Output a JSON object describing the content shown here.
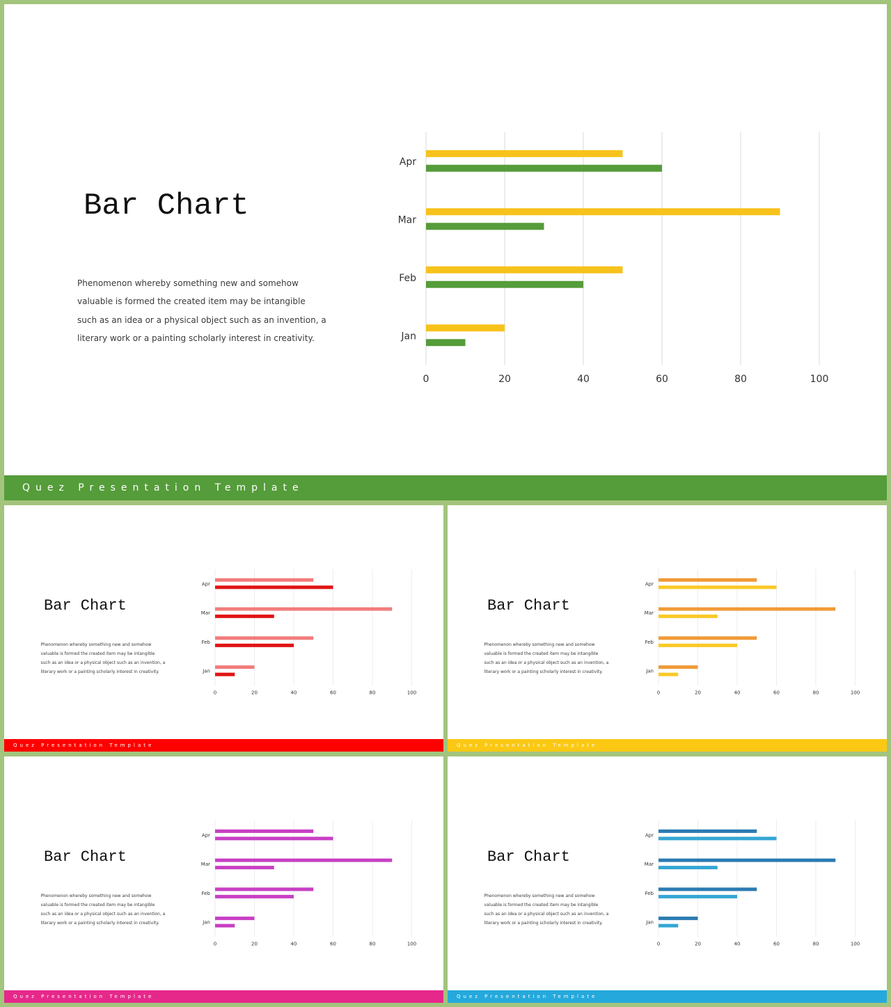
{
  "slides": [
    {
      "title": "Bar Chart",
      "body": "Phenomenon whereby something new and somehow valuable is formed the created item may be intangible such as an idea or a physical object such as an invention, a literary work or a painting scholarly interest in creativity.",
      "footer": "Quez Presentation Template",
      "colors": {
        "footer": "#559c3a",
        "series1": "#f7c21a",
        "series2": "#559c3a"
      }
    },
    {
      "title": "Bar Chart",
      "body": "Phenomenon whereby something new and somehow valuable is formed the created item may be intangible such as an idea or a physical object such as an invention, a literary work or a painting scholarly interest in creativity.",
      "footer": "Quez Presentation Template",
      "colors": {
        "footer": "#fe0000",
        "series1": "#f27c7c",
        "series2": "#e11414"
      }
    },
    {
      "title": "Bar Chart",
      "body": "Phenomenon whereby something new and somehow valuable is formed the created item may be intangible such as an idea or a physical object such as an invention, a literary work or a painting scholarly interest in creativity.",
      "footer": "Quez Presentation Template",
      "colors": {
        "footer": "#fbc814",
        "series1": "#f19a37",
        "series2": "#fac926"
      }
    },
    {
      "title": "Bar Chart",
      "body": "Phenomenon whereby something new and somehow valuable is formed the created item may be intangible such as an idea or a physical object such as an invention, a literary work or a painting scholarly interest in creativity.",
      "footer": "Quez Presentation Template",
      "colors": {
        "footer": "#e7288b",
        "series1": "#c83fc4",
        "series2": "#c83fc4"
      }
    },
    {
      "title": "Bar Chart",
      "body": "Phenomenon whereby something new and somehow valuable is formed the created item may be intangible such as an idea or a physical object such as an invention, a literary work or a painting scholarly interest in creativity.",
      "footer": "Quez Presentation Template",
      "colors": {
        "footer": "#25a9dc",
        "series1": "#2b7bb2",
        "series2": "#34a6d5"
      }
    }
  ],
  "chart_data": {
    "type": "bar",
    "orientation": "horizontal",
    "categories": [
      "Jan",
      "Feb",
      "Mar",
      "Apr"
    ],
    "series": [
      {
        "values": [
          20,
          50,
          90,
          50
        ]
      },
      {
        "values": [
          10,
          40,
          30,
          60
        ]
      }
    ],
    "xticks": [
      "0",
      "20",
      "40",
      "60",
      "80",
      "100"
    ],
    "xlim": [
      0,
      100
    ],
    "grid": "vertical"
  }
}
